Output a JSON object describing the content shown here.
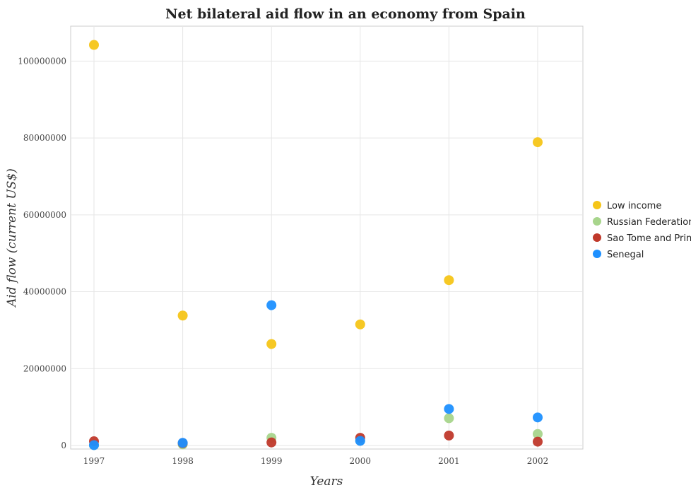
{
  "chart_data": {
    "type": "scatter",
    "title": "Net bilateral aid flow in an economy from Spain",
    "xlabel": "Years",
    "ylabel": "Aid flow (current US$)",
    "categories": [
      "1997",
      "1998",
      "1999",
      "2000",
      "2001",
      "2002"
    ],
    "ylim": [
      0,
      110000000
    ],
    "yticks": [
      0,
      20000000,
      40000000,
      60000000,
      80000000,
      100000000
    ],
    "ytick_labels": [
      "0",
      "20000000",
      "40000000",
      "60000000",
      "80000000",
      "100000000"
    ],
    "grid": true,
    "legend_position": "right",
    "series": [
      {
        "name": "Low income",
        "color": "#f5c518",
        "values": [
          104200000,
          33800000,
          26400000,
          31500000,
          43000000,
          78900000
        ]
      },
      {
        "name": "Russian Federation",
        "color": "#a8d58c",
        "values": [
          100000,
          300000,
          2000000,
          1300000,
          7100000,
          3000000
        ]
      },
      {
        "name": "Sao Tome and Principe",
        "color": "#c0392b",
        "values": [
          1100000,
          600000,
          800000,
          2000000,
          2600000,
          1000000
        ]
      },
      {
        "name": "Senegal",
        "color": "#1e90ff",
        "values": [
          100000,
          700000,
          36500000,
          1200000,
          9500000,
          7300000
        ]
      }
    ]
  }
}
